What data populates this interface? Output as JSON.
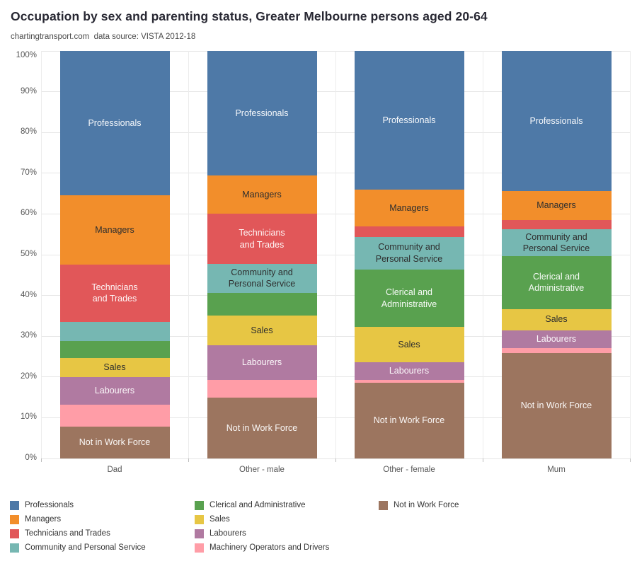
{
  "header": {
    "title": "Occupation by sex and parenting status, Greater Melbourne persons aged 20-64",
    "subtitle": "chartingtransport.com  data source: VISTA 2012-18"
  },
  "chart_data": {
    "type": "bar",
    "stacked": true,
    "orientation": "vertical",
    "units": "percent of persons",
    "title": "Occupation by sex and parenting status, Greater Melbourne persons aged 20-64",
    "subtitle": "chartingtransport.com  data source: VISTA 2012-18",
    "xlabel": "",
    "ylabel": "",
    "ylim": [
      0,
      100
    ],
    "grid": true,
    "y_ticks": [
      "100%",
      "90%",
      "80%",
      "70%",
      "60%",
      "50%",
      "40%",
      "30%",
      "20%",
      "10%",
      "0%"
    ],
    "categories": [
      "Dad",
      "Other - male",
      "Other - female",
      "Mum"
    ],
    "series": [
      {
        "name": "Professionals",
        "color": "#4e79a7",
        "label_color": "light",
        "bar_label": "Professionals",
        "values": [
          35.5,
          30.5,
          34.0,
          34.4
        ],
        "show_label": [
          true,
          true,
          true,
          true
        ]
      },
      {
        "name": "Managers",
        "color": "#f28e2b",
        "label_color": "dark",
        "bar_label": "Managers",
        "values": [
          16.9,
          9.5,
          9.1,
          7.1
        ],
        "show_label": [
          true,
          true,
          true,
          true
        ]
      },
      {
        "name": "Technicians and Trades",
        "color": "#e15759",
        "label_color": "light",
        "bar_label": "Technicians\nand Trades",
        "values": [
          14.1,
          12.3,
          2.6,
          2.3
        ],
        "show_label": [
          true,
          true,
          false,
          false
        ]
      },
      {
        "name": "Community and Personal Service",
        "color": "#76b7b2",
        "label_color": "dark",
        "bar_label": "Community and\nPersonal Service",
        "values": [
          4.7,
          7.0,
          7.9,
          6.6
        ],
        "show_label": [
          false,
          true,
          true,
          true
        ]
      },
      {
        "name": "Clerical and Administrative",
        "color": "#59a14f",
        "label_color": "light",
        "bar_label": "Clerical and\nAdministrative",
        "values": [
          4.2,
          5.6,
          14.2,
          12.9
        ],
        "show_label": [
          false,
          false,
          true,
          true
        ]
      },
      {
        "name": "Sales",
        "color": "#e7c644",
        "label_color": "dark",
        "bar_label": "Sales",
        "values": [
          4.6,
          7.3,
          8.6,
          5.2
        ],
        "show_label": [
          true,
          true,
          true,
          true
        ]
      },
      {
        "name": "Labourers",
        "color": "#b07aa1",
        "label_color": "light",
        "bar_label": "Labourers",
        "values": [
          6.9,
          8.5,
          4.3,
          4.5
        ],
        "show_label": [
          true,
          true,
          true,
          true
        ]
      },
      {
        "name": "Machinery Operators and Drivers",
        "color": "#ff9da7",
        "label_color": "dark",
        "bar_label": "Machinery Operators and Drivers",
        "values": [
          5.3,
          4.3,
          0.7,
          1.1
        ],
        "show_label": [
          false,
          false,
          false,
          false
        ]
      },
      {
        "name": "Not in Work Force",
        "color": "#9c755f",
        "label_color": "light",
        "bar_label": "Not in Work Force",
        "values": [
          7.8,
          15.0,
          18.6,
          25.9
        ],
        "show_label": [
          true,
          true,
          true,
          true
        ]
      }
    ],
    "legend": {
      "position": "bottom",
      "columns": [
        [
          "Professionals",
          "Managers",
          "Technicians and Trades",
          "Community and Personal Service"
        ],
        [
          "Clerical and Administrative",
          "Sales",
          "Labourers",
          "Machinery Operators and Drivers"
        ],
        [
          "Not in Work Force"
        ]
      ]
    }
  }
}
